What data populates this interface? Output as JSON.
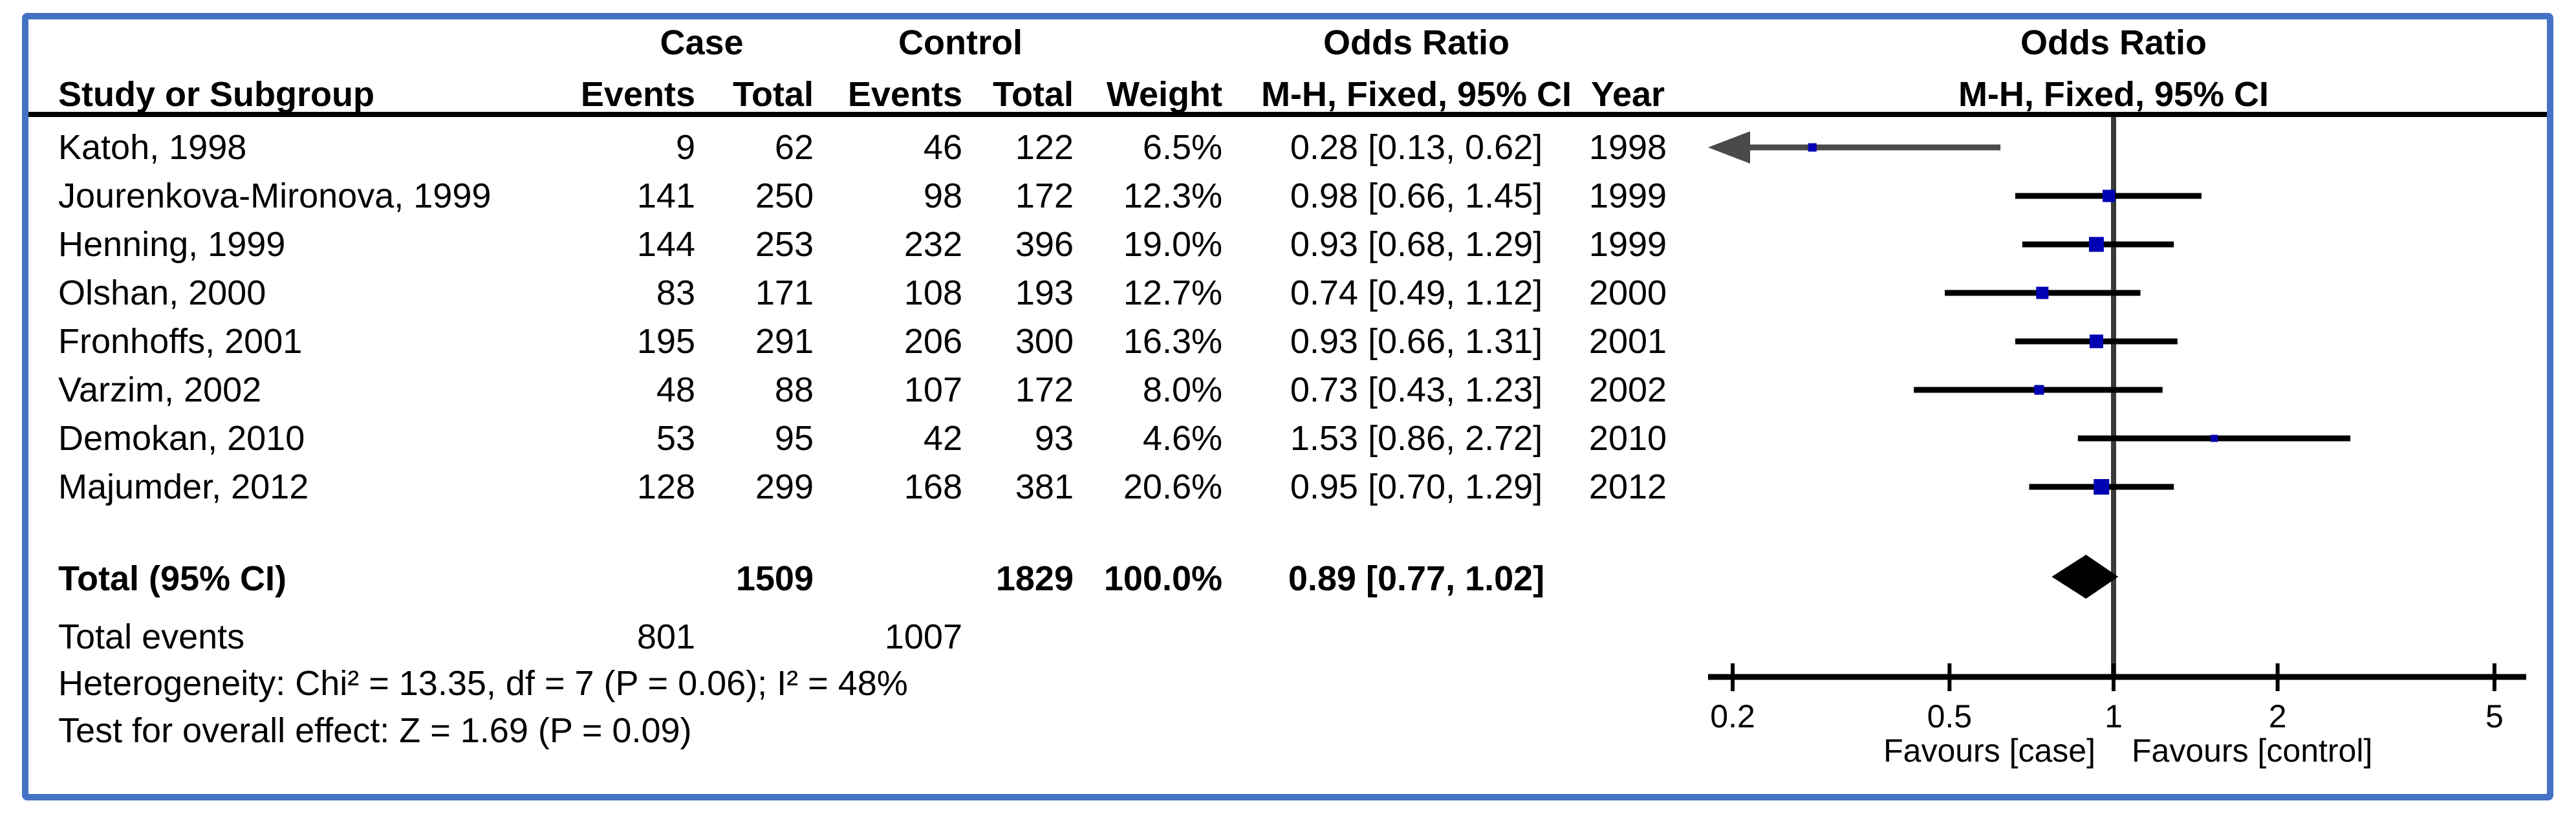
{
  "frame": {
    "border_color": "#4472C4",
    "background": "#FFFFFF"
  },
  "header": {
    "case": "Case",
    "control": "Control",
    "odds_ratio": "Odds Ratio",
    "study": "Study or Subgroup",
    "events": "Events",
    "total": "Total",
    "weight": "Weight",
    "mh_ci": "M-H, Fixed, 95% CI",
    "year": "Year",
    "plot_title": "Odds Ratio",
    "plot_subtitle": "M-H, Fixed, 95% CI"
  },
  "chart_data": {
    "type": "forest",
    "title": "Odds Ratio",
    "subtitle": "M-H, Fixed, 95% CI",
    "effect_measure": "Odds Ratio, Mantel-Haenszel, Fixed effect, 95% CI",
    "x_scale": "log",
    "xlim": [
      0.2,
      5
    ],
    "x_ticks": [
      "0.2",
      "0.5",
      "1",
      "2",
      "5"
    ],
    "favours_left": "Favours [case]",
    "favours_right": "Favours [control]",
    "marker_color": "#0000B4",
    "line_color": "#000000",
    "no_effect_line_color": "#3a3a3a",
    "studies": [
      {
        "name": "Katoh, 1998",
        "case_events": "9",
        "case_total": "62",
        "control_events": "46",
        "control_total": "122",
        "weight": "6.5%",
        "or_ci": "0.28 [0.13, 0.62]",
        "year": "1998",
        "or": 0.28,
        "lo": 0.13,
        "hi": 0.62,
        "w": 6.5
      },
      {
        "name": "Jourenkova-Mironova, 1999",
        "case_events": "141",
        "case_total": "250",
        "control_events": "98",
        "control_total": "172",
        "weight": "12.3%",
        "or_ci": "0.98 [0.66, 1.45]",
        "year": "1999",
        "or": 0.98,
        "lo": 0.66,
        "hi": 1.45,
        "w": 12.3
      },
      {
        "name": "Henning, 1999",
        "case_events": "144",
        "case_total": "253",
        "control_events": "232",
        "control_total": "396",
        "weight": "19.0%",
        "or_ci": "0.93 [0.68, 1.29]",
        "year": "1999",
        "or": 0.93,
        "lo": 0.68,
        "hi": 1.29,
        "w": 19.0
      },
      {
        "name": "Olshan, 2000",
        "case_events": "83",
        "case_total": "171",
        "control_events": "108",
        "control_total": "193",
        "weight": "12.7%",
        "or_ci": "0.74 [0.49, 1.12]",
        "year": "2000",
        "or": 0.74,
        "lo": 0.49,
        "hi": 1.12,
        "w": 12.7
      },
      {
        "name": "Fronhoffs, 2001",
        "case_events": "195",
        "case_total": "291",
        "control_events": "206",
        "control_total": "300",
        "weight": "16.3%",
        "or_ci": "0.93 [0.66, 1.31]",
        "year": "2001",
        "or": 0.93,
        "lo": 0.66,
        "hi": 1.31,
        "w": 16.3
      },
      {
        "name": "Varzim, 2002",
        "case_events": "48",
        "case_total": "88",
        "control_events": "107",
        "control_total": "172",
        "weight": "8.0%",
        "or_ci": "0.73 [0.43, 1.23]",
        "year": "2002",
        "or": 0.73,
        "lo": 0.43,
        "hi": 1.23,
        "w": 8.0
      },
      {
        "name": "Demokan, 2010",
        "case_events": "53",
        "case_total": "95",
        "control_events": "42",
        "control_total": "93",
        "weight": "4.6%",
        "or_ci": "1.53 [0.86, 2.72]",
        "year": "2010",
        "or": 1.53,
        "lo": 0.86,
        "hi": 2.72,
        "w": 4.6
      },
      {
        "name": "Majumder, 2012",
        "case_events": "128",
        "case_total": "299",
        "control_events": "168",
        "control_total": "381",
        "weight": "20.6%",
        "or_ci": "0.95 [0.70, 1.29]",
        "year": "2012",
        "or": 0.95,
        "lo": 0.7,
        "hi": 1.29,
        "w": 20.6
      }
    ],
    "total": {
      "label": "Total (95% CI)",
      "case_total": "1509",
      "control_total": "1829",
      "weight": "100.0%",
      "or_ci": "0.89 [0.77, 1.02]",
      "or": 0.89,
      "lo": 0.77,
      "hi": 1.02
    },
    "total_events": {
      "label": "Total events",
      "case": "801",
      "control": "1007"
    },
    "heterogeneity": "Heterogeneity: Chi² = 13.35, df = 7 (P = 0.06); I² = 48%",
    "overall_effect": "Test for overall effect: Z = 1.69 (P = 0.09)"
  }
}
